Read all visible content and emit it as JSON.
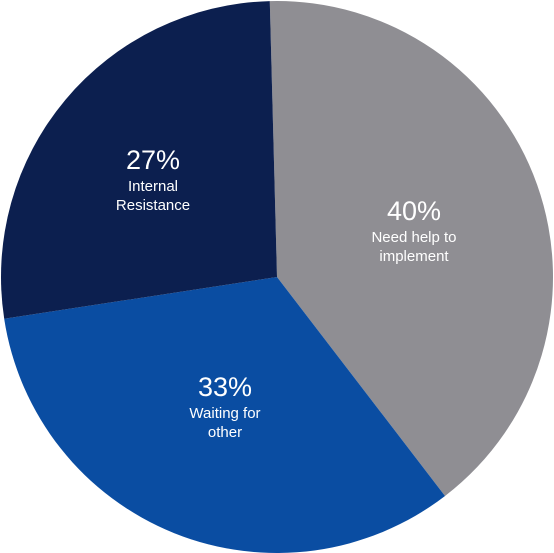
{
  "chart_data": {
    "type": "pie",
    "categories": [
      "Need help to implement",
      "Waiting for other",
      "Internal Resistance"
    ],
    "values": [
      40,
      33,
      27
    ],
    "value_labels": [
      "40%",
      "33%",
      "27%"
    ],
    "colors": [
      "#8f8e93",
      "#0a4da2",
      "#0c1f4f"
    ]
  }
}
